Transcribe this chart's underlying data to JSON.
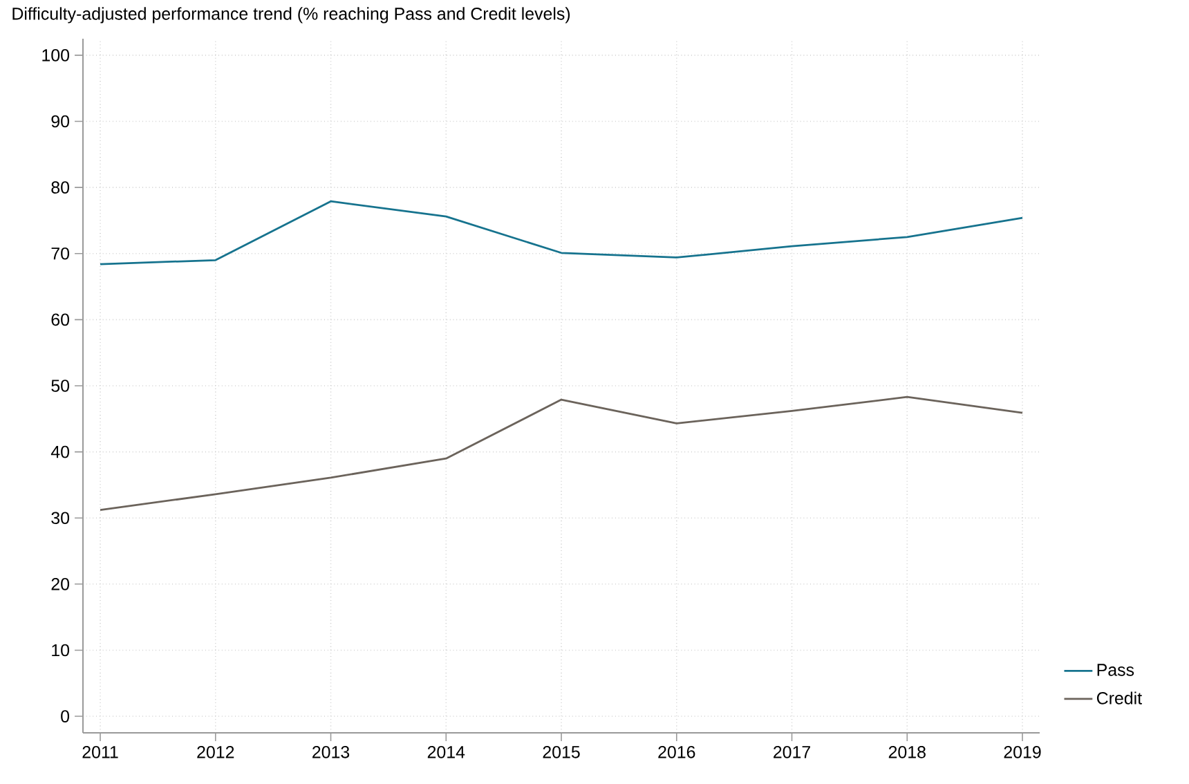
{
  "chart_data": {
    "type": "line",
    "title": "Difficulty-adjusted performance trend (% reaching Pass and Credit levels)",
    "x": [
      2011,
      2012,
      2013,
      2014,
      2015,
      2016,
      2017,
      2018,
      2019
    ],
    "series": [
      {
        "name": "Pass",
        "color": "#16738e",
        "values": [
          68.4,
          69.0,
          77.9,
          75.6,
          70.1,
          69.4,
          71.1,
          72.5,
          75.4
        ]
      },
      {
        "name": "Credit",
        "color": "#6b635b",
        "values": [
          31.2,
          33.6,
          36.1,
          39.0,
          47.9,
          44.3,
          46.2,
          48.3,
          45.9
        ]
      }
    ],
    "xlim": [
      2010.85,
      2019.15
    ],
    "xticks": [
      2011,
      2012,
      2013,
      2014,
      2015,
      2016,
      2017,
      2018,
      2019
    ],
    "ylim": [
      -2.5,
      102.5
    ],
    "yticks": [
      0,
      10,
      20,
      30,
      40,
      50,
      60,
      70,
      80,
      90,
      100
    ],
    "grid": true,
    "legend": "bottom right",
    "marker": "none",
    "line_style": "solid"
  }
}
